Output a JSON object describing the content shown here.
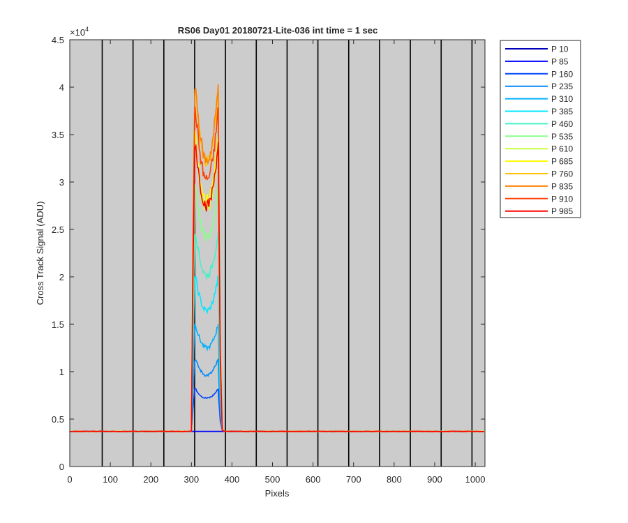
{
  "chart_data": {
    "type": "line",
    "title": "RS06 Day01 20180721-Lite-036 int time = 1 sec",
    "xlabel": "Pixels",
    "ylabel": "Cross Track Signal (ADU)",
    "y_exponent_label": "×10",
    "y_exponent_power": "4",
    "xlim": [
      0,
      1024
    ],
    "ylim": [
      0,
      45000
    ],
    "x_ticks": [
      0,
      100,
      200,
      300,
      400,
      500,
      600,
      700,
      800,
      900,
      1000
    ],
    "x_tick_labels": [
      "0",
      "100",
      "200",
      "300",
      "400",
      "500",
      "600",
      "700",
      "800",
      "900",
      "1000"
    ],
    "y_ticks": [
      0,
      5000,
      10000,
      15000,
      20000,
      25000,
      30000,
      35000,
      40000,
      45000
    ],
    "y_tick_labels": [
      "0",
      "0.5",
      "1",
      "1.5",
      "2",
      "2.5",
      "3",
      "3.5",
      "4",
      "4.5"
    ],
    "vertical_grid_lines_x": [
      80,
      156,
      232,
      308,
      384,
      460,
      536,
      612,
      688,
      764,
      840,
      916,
      992
    ],
    "background_color": "#cccccc",
    "grid_color": "#000000",
    "legend_position": "outside-right",
    "baseline": 3700,
    "plateau_x_range": [
      305,
      375
    ],
    "series": [
      {
        "name": "P 10",
        "color": "#0000b8",
        "peak": 3700
      },
      {
        "name": "P 85",
        "color": "#0000ff",
        "peak": 3700
      },
      {
        "name": "P 160",
        "color": "#0044ff",
        "peak": 8200
      },
      {
        "name": "P 235",
        "color": "#0088ff",
        "peak": 11300
      },
      {
        "name": "P 310",
        "color": "#00b0ff",
        "peak": 15000
      },
      {
        "name": "P 385",
        "color": "#00e8ff",
        "peak": 20000
      },
      {
        "name": "P 460",
        "color": "#44f0c8",
        "peak": 24800
      },
      {
        "name": "P 535",
        "color": "#88ff88",
        "peak": 29800
      },
      {
        "name": "P 610",
        "color": "#c8ff40",
        "peak": 33800
      },
      {
        "name": "P 685",
        "color": "#ffff00",
        "peak": 35000
      },
      {
        "name": "P 760",
        "color": "#ffc000",
        "peak": 40000
      },
      {
        "name": "P 835",
        "color": "#ff8000",
        "peak": 40300
      },
      {
        "name": "P 910",
        "color": "#ff4000",
        "peak": 37800
      },
      {
        "name": "P 985",
        "color": "#ff0000",
        "peak": 34200
      }
    ]
  }
}
